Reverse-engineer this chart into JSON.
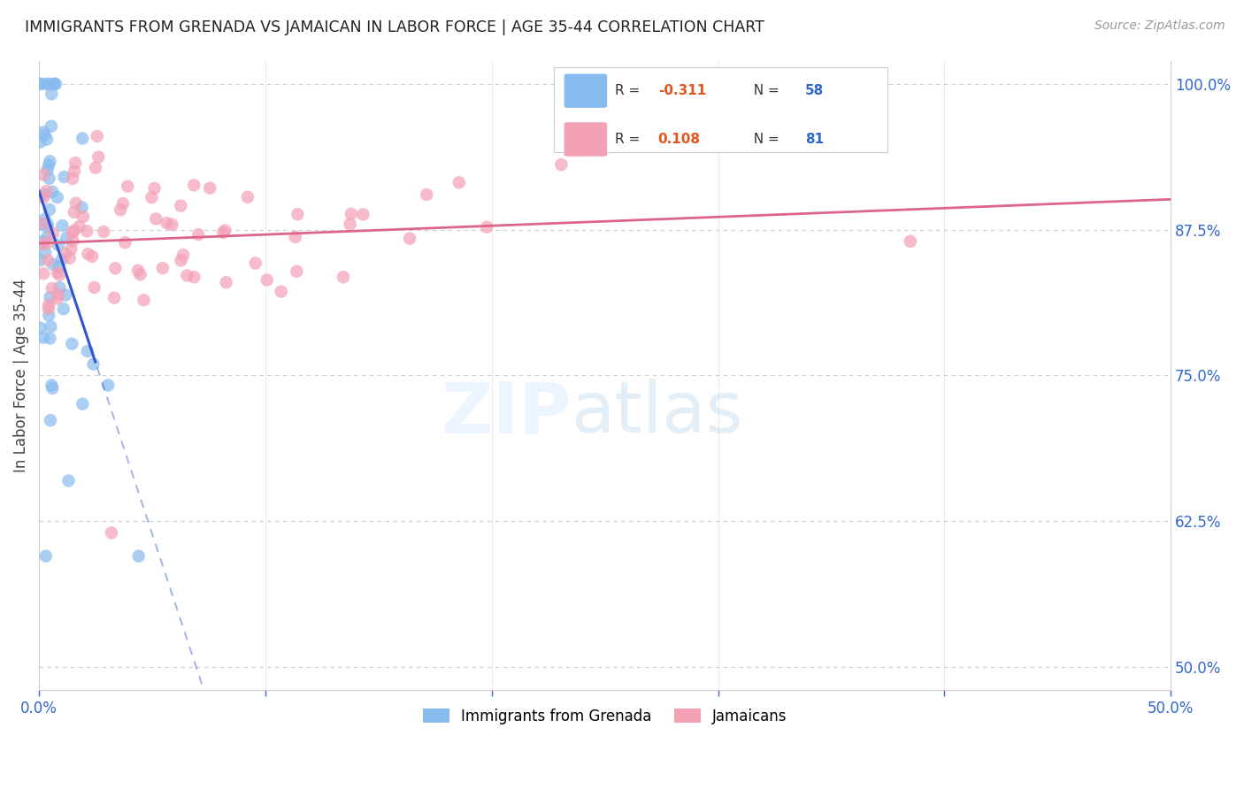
{
  "title": "IMMIGRANTS FROM GRENADA VS JAMAICAN IN LABOR FORCE | AGE 35-44 CORRELATION CHART",
  "source": "Source: ZipAtlas.com",
  "ylabel": "In Labor Force | Age 35-44",
  "xlim": [
    0.0,
    0.5
  ],
  "ylim": [
    0.48,
    1.02
  ],
  "xtick_vals": [
    0.0,
    0.1,
    0.2,
    0.3,
    0.4,
    0.5
  ],
  "xticklabels": [
    "0.0%",
    "",
    "",
    "",
    "",
    "50.0%"
  ],
  "yticks_right": [
    0.5,
    0.625,
    0.75,
    0.875,
    1.0
  ],
  "ytick_right_labels": [
    "50.0%",
    "62.5%",
    "75.0%",
    "87.5%",
    "100.0%"
  ],
  "grenada_R": -0.311,
  "grenada_N": 58,
  "jamaica_R": 0.108,
  "jamaica_N": 81,
  "grenada_color": "#88bbee",
  "jamaica_color": "#f4a0b5",
  "grenada_line_color": "#3355cc",
  "jamaica_line_color": "#dd6688",
  "background_color": "#ffffff",
  "grid_color": "#cccccc",
  "title_fontsize": 12.5,
  "axis_tick_color": "#3366cc",
  "ylabel_color": "#444444",
  "source_color": "#999999"
}
